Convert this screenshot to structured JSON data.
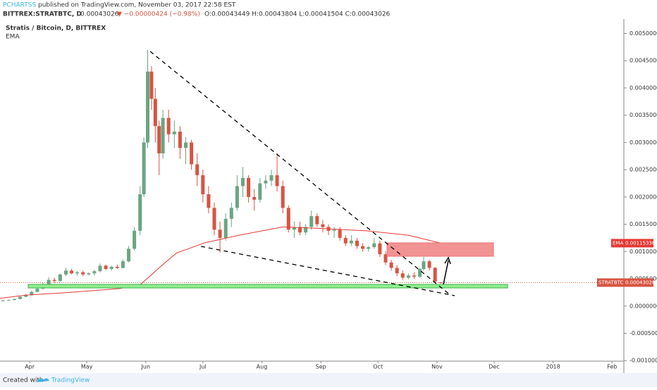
{
  "header": {
    "author": "PCHARTSS",
    "published": "published on TradingView.com, November 03, 2017 22:58 EST",
    "symbol": "BITTREX:STRATBTC, D",
    "last": "0.00043026",
    "change": "▼ −0.00000424 (−0.98%)",
    "ohlc": "O:0.00043449 H:0.00043804 L:0.00041504 C:0.00043026",
    "legend_title": "Stratis / Bitcoin, D, BITTREX"
  },
  "footer": {
    "created": "Created with",
    "brand": "TradingView"
  },
  "chart_data": {
    "type": "candlestick",
    "up_color": "#6ba583",
    "down_color": "#d75442",
    "xlim": [
      -15.6,
      312.2
    ],
    "xticks": [
      {
        "value": 0,
        "label": "Apr"
      },
      {
        "value": 30,
        "label": "May"
      },
      {
        "value": 61,
        "label": "Jun"
      },
      {
        "value": 91,
        "label": "Jul"
      },
      {
        "value": 122,
        "label": "Aug"
      },
      {
        "value": 153,
        "label": "Sep"
      },
      {
        "value": 183,
        "label": "Oct"
      },
      {
        "value": 214,
        "label": "Nov"
      },
      {
        "value": 244,
        "label": "Dec"
      },
      {
        "value": 275,
        "label": "2018"
      },
      {
        "value": 306,
        "label": "Feb"
      }
    ],
    "ylim": [
      -0.00101,
      0.00529
    ],
    "yticks": [
      {
        "value": 0.005,
        "label": "0.00500000"
      },
      {
        "value": 0.0045,
        "label": "0.00450000"
      },
      {
        "value": 0.004,
        "label": "0.00400000"
      },
      {
        "value": 0.0035,
        "label": "0.00350000"
      },
      {
        "value": 0.003,
        "label": "0.00300000"
      },
      {
        "value": 0.0025,
        "label": "0.00250000"
      },
      {
        "value": 0.002,
        "label": "0.00200000"
      },
      {
        "value": 0.0015,
        "label": "0.00150000"
      },
      {
        "value": 0.001,
        "label": "0.00100000"
      },
      {
        "value": 0.0005,
        "label": "0.00050000"
      },
      {
        "value": 0,
        "label": "0.00000000"
      },
      {
        "value": -0.0005,
        "label": "-0.00050000"
      },
      {
        "value": -0.001,
        "label": "-0.00100000"
      }
    ],
    "symbol_label": "STRATBTC",
    "last_price": 0.00043026,
    "candles": [
      {
        "x": -14,
        "open": 0.0001,
        "high": 0.00011,
        "low": 9e-05,
        "close": 0.0001
      },
      {
        "x": -11,
        "open": 0.0001,
        "high": 0.00012,
        "low": 0.0001,
        "close": 0.00011
      },
      {
        "x": -8,
        "open": 0.00011,
        "high": 0.00014,
        "low": 0.00011,
        "close": 0.00013
      },
      {
        "x": -5,
        "open": 0.00013,
        "high": 0.00018,
        "low": 0.00012,
        "close": 0.00017
      },
      {
        "x": -2,
        "open": 0.00017,
        "high": 0.00022,
        "low": 0.00016,
        "close": 0.0002
      },
      {
        "x": 1,
        "open": 0.0002,
        "high": 0.00028,
        "low": 0.00019,
        "close": 0.00026
      },
      {
        "x": 4,
        "open": 0.00026,
        "high": 0.00035,
        "low": 0.00025,
        "close": 0.00032
      },
      {
        "x": 7,
        "open": 0.00032,
        "high": 0.00042,
        "low": 0.0003,
        "close": 0.00039
      },
      {
        "x": 10,
        "open": 0.00039,
        "high": 0.00053,
        "low": 0.00036,
        "close": 0.00048
      },
      {
        "x": 13,
        "open": 0.00048,
        "high": 0.00052,
        "low": 0.00042,
        "close": 0.00046
      },
      {
        "x": 16,
        "open": 0.00046,
        "high": 0.0006,
        "low": 0.00045,
        "close": 0.00058
      },
      {
        "x": 19,
        "open": 0.00058,
        "high": 0.0007,
        "low": 0.00055,
        "close": 0.00065
      },
      {
        "x": 22,
        "open": 0.00065,
        "high": 0.00068,
        "low": 0.00058,
        "close": 0.0006
      },
      {
        "x": 25,
        "open": 0.0006,
        "high": 0.00064,
        "low": 0.00056,
        "close": 0.00062
      },
      {
        "x": 28,
        "open": 0.00062,
        "high": 0.00065,
        "low": 0.00055,
        "close": 0.00058
      },
      {
        "x": 31,
        "open": 0.00058,
        "high": 0.00062,
        "low": 0.00056,
        "close": 0.0006
      },
      {
        "x": 34,
        "open": 0.0006,
        "high": 0.00066,
        "low": 0.00056,
        "close": 0.00064
      },
      {
        "x": 37,
        "open": 0.00064,
        "high": 0.00078,
        "low": 0.00062,
        "close": 0.00074
      },
      {
        "x": 40,
        "open": 0.00074,
        "high": 0.00076,
        "low": 0.00066,
        "close": 0.00068
      },
      {
        "x": 43,
        "open": 0.00068,
        "high": 0.00074,
        "low": 0.00065,
        "close": 0.00072
      },
      {
        "x": 46,
        "open": 0.00072,
        "high": 0.00076,
        "low": 0.00068,
        "close": 0.0007
      },
      {
        "x": 49,
        "open": 0.0007,
        "high": 0.00086,
        "low": 0.00069,
        "close": 0.00082
      },
      {
        "x": 52,
        "open": 0.00082,
        "high": 0.0011,
        "low": 0.0008,
        "close": 0.00105
      },
      {
        "x": 55,
        "open": 0.00105,
        "high": 0.00145,
        "low": 0.00102,
        "close": 0.00138
      },
      {
        "x": 58,
        "open": 0.00138,
        "high": 0.0022,
        "low": 0.0013,
        "close": 0.00205
      },
      {
        "x": 60,
        "open": 0.00205,
        "high": 0.0031,
        "low": 0.002,
        "close": 0.003
      },
      {
        "x": 62,
        "open": 0.003,
        "high": 0.0047,
        "low": 0.0029,
        "close": 0.0043
      },
      {
        "x": 64,
        "open": 0.0043,
        "high": 0.0044,
        "low": 0.0036,
        "close": 0.0038
      },
      {
        "x": 66,
        "open": 0.0038,
        "high": 0.004,
        "low": 0.003,
        "close": 0.0033
      },
      {
        "x": 68,
        "open": 0.0033,
        "high": 0.0034,
        "low": 0.0024,
        "close": 0.0028
      },
      {
        "x": 70,
        "open": 0.0028,
        "high": 0.0036,
        "low": 0.0027,
        "close": 0.00345
      },
      {
        "x": 73,
        "open": 0.00345,
        "high": 0.0036,
        "low": 0.003,
        "close": 0.00315
      },
      {
        "x": 76,
        "open": 0.00315,
        "high": 0.0034,
        "low": 0.0029,
        "close": 0.0032
      },
      {
        "x": 79,
        "open": 0.0032,
        "high": 0.0033,
        "low": 0.0027,
        "close": 0.0029
      },
      {
        "x": 82,
        "open": 0.0029,
        "high": 0.0031,
        "low": 0.0026,
        "close": 0.003
      },
      {
        "x": 85,
        "open": 0.003,
        "high": 0.00305,
        "low": 0.0025,
        "close": 0.0026
      },
      {
        "x": 88,
        "open": 0.0026,
        "high": 0.0028,
        "low": 0.0022,
        "close": 0.0024
      },
      {
        "x": 91,
        "open": 0.0024,
        "high": 0.0025,
        "low": 0.0019,
        "close": 0.00205
      },
      {
        "x": 94,
        "open": 0.00205,
        "high": 0.0022,
        "low": 0.0017,
        "close": 0.0018
      },
      {
        "x": 97,
        "open": 0.0018,
        "high": 0.0019,
        "low": 0.0013,
        "close": 0.0014
      },
      {
        "x": 100,
        "open": 0.0014,
        "high": 0.00155,
        "low": 0.00098,
        "close": 0.00125
      },
      {
        "x": 103,
        "open": 0.00125,
        "high": 0.0017,
        "low": 0.0012,
        "close": 0.0016
      },
      {
        "x": 106,
        "open": 0.0016,
        "high": 0.0019,
        "low": 0.00145,
        "close": 0.0018
      },
      {
        "x": 109,
        "open": 0.0018,
        "high": 0.0024,
        "low": 0.00175,
        "close": 0.0022
      },
      {
        "x": 112,
        "open": 0.0022,
        "high": 0.00255,
        "low": 0.002,
        "close": 0.00235
      },
      {
        "x": 115,
        "open": 0.00235,
        "high": 0.0024,
        "low": 0.0019,
        "close": 0.002
      },
      {
        "x": 118,
        "open": 0.002,
        "high": 0.00215,
        "low": 0.00175,
        "close": 0.00195
      },
      {
        "x": 121,
        "open": 0.00195,
        "high": 0.00235,
        "low": 0.0019,
        "close": 0.00225
      },
      {
        "x": 124,
        "open": 0.00225,
        "high": 0.0024,
        "low": 0.00215,
        "close": 0.0023
      },
      {
        "x": 127,
        "open": 0.0023,
        "high": 0.0025,
        "low": 0.0022,
        "close": 0.0024
      },
      {
        "x": 130,
        "open": 0.0024,
        "high": 0.0028,
        "low": 0.0021,
        "close": 0.0022
      },
      {
        "x": 133,
        "open": 0.0022,
        "high": 0.0023,
        "low": 0.0017,
        "close": 0.0018
      },
      {
        "x": 136,
        "open": 0.0018,
        "high": 0.00185,
        "low": 0.00135,
        "close": 0.0014
      },
      {
        "x": 139,
        "open": 0.0014,
        "high": 0.00155,
        "low": 0.00125,
        "close": 0.00145
      },
      {
        "x": 142,
        "open": 0.00145,
        "high": 0.00155,
        "low": 0.0013,
        "close": 0.00135
      },
      {
        "x": 145,
        "open": 0.00135,
        "high": 0.0015,
        "low": 0.0013,
        "close": 0.00145
      },
      {
        "x": 148,
        "open": 0.00145,
        "high": 0.00175,
        "low": 0.0014,
        "close": 0.00165
      },
      {
        "x": 151,
        "open": 0.00165,
        "high": 0.0017,
        "low": 0.00145,
        "close": 0.0015
      },
      {
        "x": 154,
        "open": 0.0015,
        "high": 0.00158,
        "low": 0.00135,
        "close": 0.00145
      },
      {
        "x": 157,
        "open": 0.00145,
        "high": 0.0015,
        "low": 0.0013,
        "close": 0.00138
      },
      {
        "x": 160,
        "open": 0.00138,
        "high": 0.00145,
        "low": 0.00125,
        "close": 0.0014
      },
      {
        "x": 163,
        "open": 0.0014,
        "high": 0.00145,
        "low": 0.0012,
        "close": 0.00125
      },
      {
        "x": 166,
        "open": 0.00125,
        "high": 0.0013,
        "low": 0.0011,
        "close": 0.00115
      },
      {
        "x": 169,
        "open": 0.00115,
        "high": 0.0013,
        "low": 0.0011,
        "close": 0.0012
      },
      {
        "x": 172,
        "open": 0.0012,
        "high": 0.00125,
        "low": 0.00105,
        "close": 0.0011
      },
      {
        "x": 175,
        "open": 0.0011,
        "high": 0.00115,
        "low": 0.001,
        "close": 0.00105
      },
      {
        "x": 178,
        "open": 0.00105,
        "high": 0.0011,
        "low": 0.001,
        "close": 0.00108
      },
      {
        "x": 181,
        "open": 0.00108,
        "high": 0.00125,
        "low": 0.00105,
        "close": 0.00115
      },
      {
        "x": 184,
        "open": 0.00115,
        "high": 0.0012,
        "low": 0.0009,
        "close": 0.00095
      },
      {
        "x": 187,
        "open": 0.00095,
        "high": 0.001,
        "low": 0.00075,
        "close": 0.0008
      },
      {
        "x": 190,
        "open": 0.0008,
        "high": 0.00085,
        "low": 0.00065,
        "close": 0.0007
      },
      {
        "x": 193,
        "open": 0.0007,
        "high": 0.00075,
        "low": 0.00055,
        "close": 0.0006
      },
      {
        "x": 196,
        "open": 0.0006,
        "high": 0.00065,
        "low": 0.00048,
        "close": 0.00052
      },
      {
        "x": 199,
        "open": 0.00052,
        "high": 0.0006,
        "low": 0.00049,
        "close": 0.00056
      },
      {
        "x": 202,
        "open": 0.00056,
        "high": 0.00062,
        "low": 0.0005,
        "close": 0.00054
      },
      {
        "x": 205,
        "open": 0.00054,
        "high": 0.0007,
        "low": 0.00052,
        "close": 0.00068
      },
      {
        "x": 207,
        "open": 0.00068,
        "high": 0.0009,
        "low": 0.00065,
        "close": 0.00082
      },
      {
        "x": 210,
        "open": 0.00082,
        "high": 0.00085,
        "low": 0.00065,
        "close": 0.0007
      },
      {
        "x": 213,
        "open": 0.0007,
        "high": 0.00072,
        "low": 0.00044,
        "close": 0.00045
      },
      {
        "x": 216,
        "open": 0.00043449,
        "high": 0.00043804,
        "low": 0.00041504,
        "close": 0.00043026
      }
    ],
    "series": [
      {
        "name": "EMA",
        "color": "#e53935",
        "x": [
          -16,
          -2,
          21,
          47,
          58,
          68,
          77,
          92,
          110,
          133,
          155,
          177,
          199,
          216
        ],
        "values": [
          0.00014,
          0.0002,
          0.00025,
          0.00032,
          0.00039,
          0.0007,
          0.00097,
          0.00116,
          0.0013,
          0.00145,
          0.00142,
          0.00138,
          0.0013,
          0.00115336
        ]
      }
    ]
  }
}
